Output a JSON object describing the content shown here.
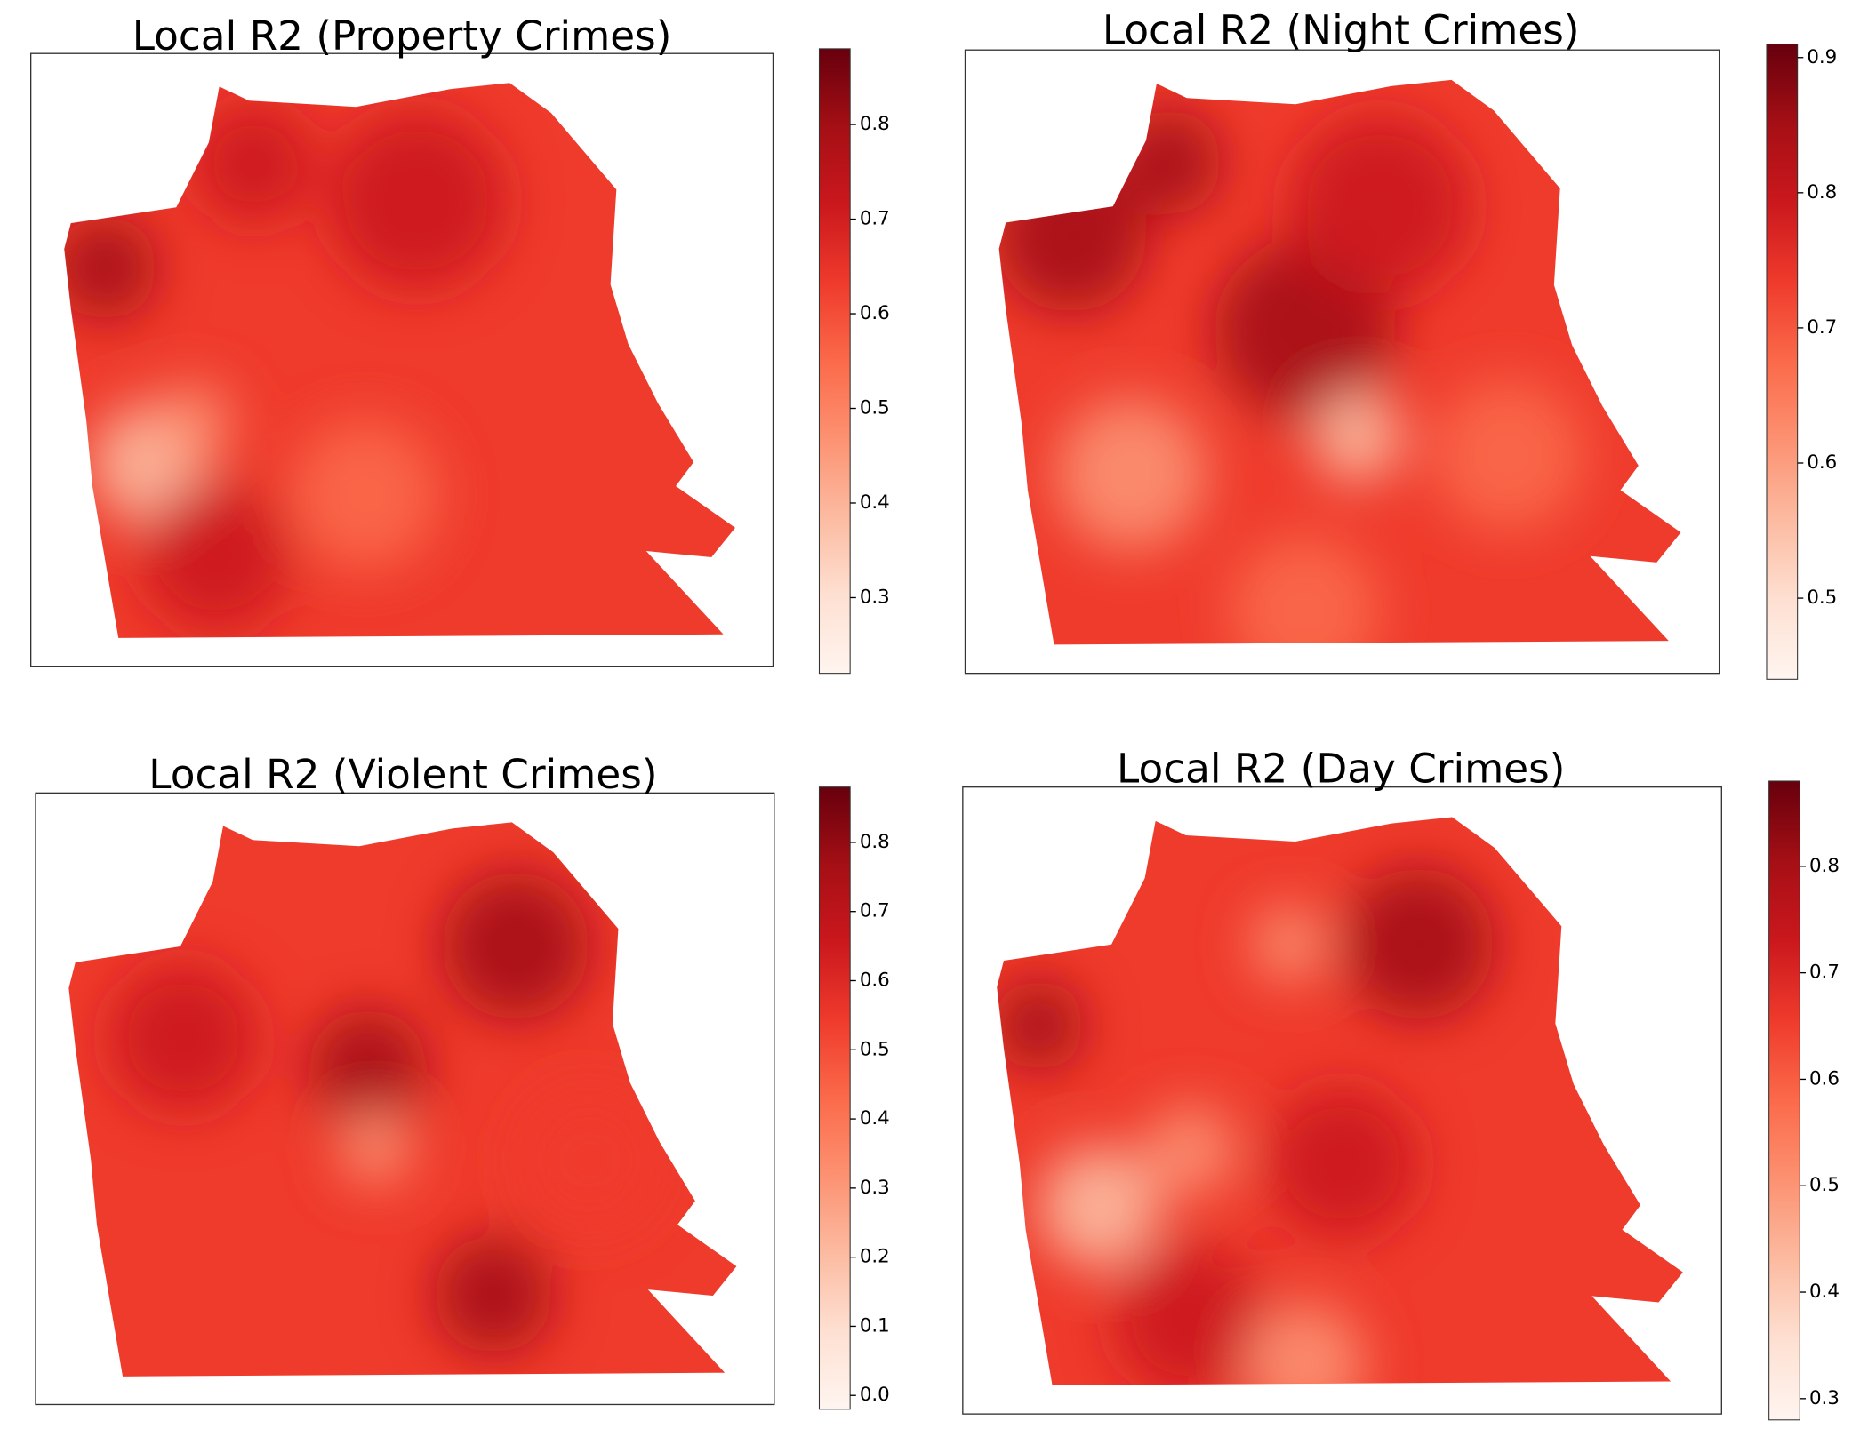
{
  "maps": [
    {
      "title": "Local R2 (Property Crimes)",
      "colorbar": {
        "lim": [
          0.22,
          0.88
        ],
        "ticks": [
          0.3,
          0.4,
          0.5,
          0.6,
          0.7,
          0.8
        ]
      }
    },
    {
      "title": "Local R2 (Night Crimes)",
      "colorbar": {
        "lim": [
          0.44,
          0.91
        ],
        "ticks": [
          0.5,
          0.6,
          0.7,
          0.8,
          0.9
        ]
      }
    },
    {
      "title": "Local R2 (Violent Crimes)",
      "colorbar": {
        "lim": [
          -0.02,
          0.88
        ],
        "ticks": [
          {
            "value": 0,
            "label": "0.0"
          },
          0.1,
          0.2,
          0.3,
          0.4,
          0.5,
          0.6,
          0.7,
          0.8
        ]
      }
    },
    {
      "title": "Local R2 (Day Crimes)",
      "colorbar": {
        "lim": [
          0.28,
          0.88
        ],
        "ticks": [
          0.3,
          0.4,
          0.5,
          0.6,
          0.7,
          0.8
        ]
      }
    }
  ],
  "colormap": [
    "#fff5f0",
    "#fee0d2",
    "#fcbba1",
    "#fc9272",
    "#fb6a4a",
    "#ef3b2c",
    "#cb181d",
    "#a50f15",
    "#67000d"
  ]
}
